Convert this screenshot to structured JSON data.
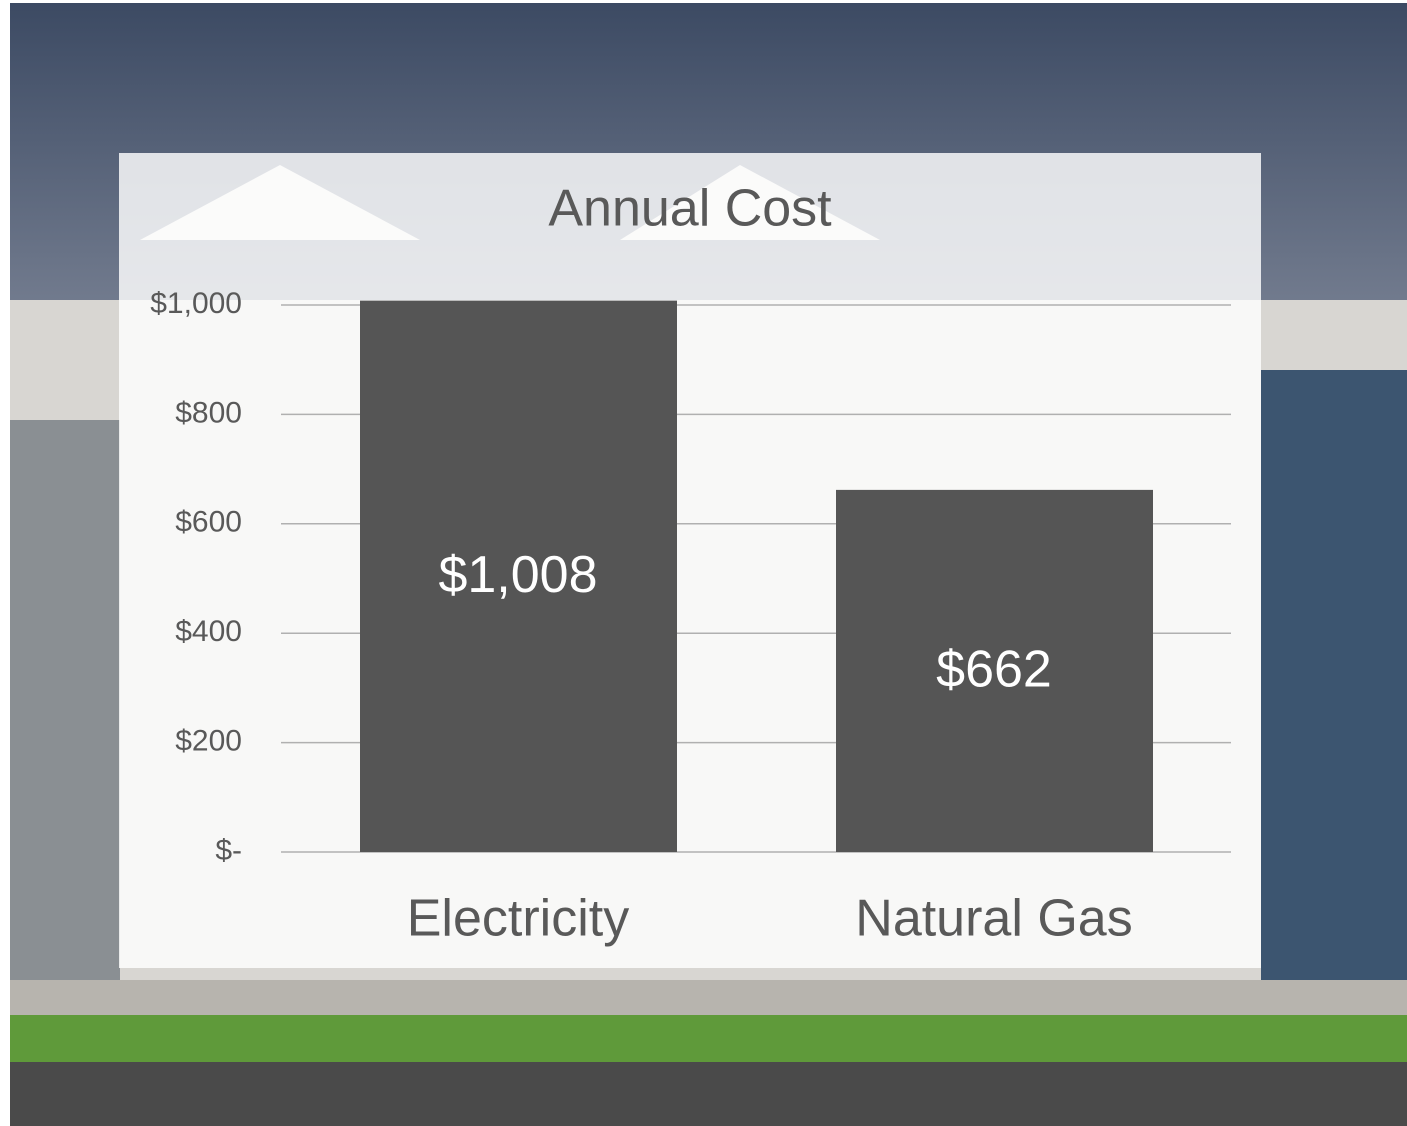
{
  "chart_data": {
    "type": "bar",
    "title": "Annual Cost",
    "categories": [
      "Electricity",
      "Natural Gas"
    ],
    "values": [
      1008,
      662
    ],
    "value_labels": [
      "$1,008",
      "$662"
    ],
    "color": "#555555",
    "ylim": [
      0,
      1000
    ],
    "yticks": [
      {
        "value": 0,
        "label": "$-"
      },
      {
        "value": 200,
        "label": "$200"
      },
      {
        "value": 400,
        "label": "$400"
      },
      {
        "value": 600,
        "label": "$600"
      },
      {
        "value": 800,
        "label": "$800"
      },
      {
        "value": 1000,
        "label": "$1,000"
      }
    ],
    "grid": true
  }
}
